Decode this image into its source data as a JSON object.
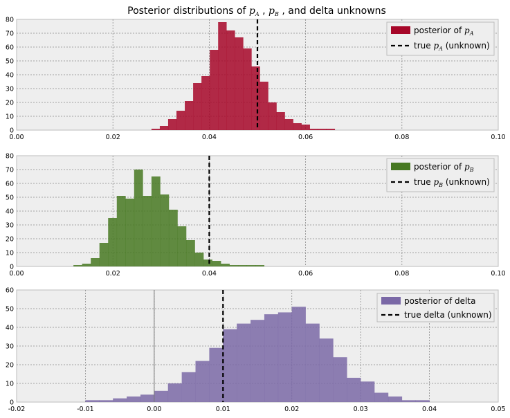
{
  "figure_title": {
    "pre": "Posterior distributions of ",
    "sep1": " , ",
    "sep2": " , and delta unknowns",
    "symbol_a": "p",
    "sub_a": "A",
    "symbol_b": "p",
    "sub_b": "B"
  },
  "colors": {
    "panel_bg": "#eeeeee",
    "grid": "#8a8a8a",
    "hist_a": "#a60628",
    "hist_b": "#467821",
    "hist_delta": "#7a68a6",
    "truth_line": "#000000"
  },
  "chart_data": [
    {
      "id": "A",
      "type": "bar",
      "title": "",
      "xlim": [
        0.0,
        0.1
      ],
      "ylim": [
        0,
        80
      ],
      "xticks": [
        "0.00",
        "0.02",
        "0.04",
        "0.06",
        "0.08",
        "0.10"
      ],
      "yticks": [
        "0",
        "10",
        "20",
        "30",
        "40",
        "50",
        "60",
        "70",
        "80"
      ],
      "grid": true,
      "legend_placement": "top-right",
      "legend": {
        "hist_label_pre": "posterior of ",
        "hist_symbol": "p",
        "hist_sub": "A",
        "line_label_pre": "true ",
        "line_symbol": "p",
        "line_sub": "A",
        "line_label_post": " (unknown)"
      },
      "true_value": 0.05,
      "bins": {
        "start": 0.028,
        "width": 0.00173,
        "heights": [
          1,
          3,
          8,
          14,
          21,
          34,
          39,
          58,
          78,
          72,
          67,
          59,
          46,
          35,
          20,
          13,
          8,
          5,
          4,
          1,
          1,
          1
        ]
      }
    },
    {
      "id": "B",
      "type": "bar",
      "title": "",
      "xlim": [
        0.0,
        0.1
      ],
      "ylim": [
        0,
        80
      ],
      "xticks": [
        "0.00",
        "0.02",
        "0.04",
        "0.06",
        "0.08",
        "0.10"
      ],
      "yticks": [
        "0",
        "10",
        "20",
        "30",
        "40",
        "50",
        "60",
        "70",
        "80"
      ],
      "grid": true,
      "legend_placement": "top-right",
      "legend": {
        "hist_label_pre": "posterior of ",
        "hist_symbol": "p",
        "hist_sub": "B",
        "line_label_pre": "true ",
        "line_symbol": "p",
        "line_sub": "B",
        "line_label_post": " (unknown)"
      },
      "true_value": 0.04,
      "bins": {
        "start": 0.0118,
        "width": 0.0018,
        "heights": [
          1,
          2,
          6,
          17,
          35,
          51,
          49,
          70,
          51,
          65,
          52,
          41,
          29,
          19,
          10,
          5,
          4,
          2,
          1,
          1,
          1,
          1
        ]
      }
    },
    {
      "id": "delta",
      "type": "bar",
      "title": "",
      "xlim": [
        -0.02,
        0.05
      ],
      "ylim": [
        0,
        60
      ],
      "xticks": [
        "-0.02",
        "-0.01",
        "0.00",
        "0.01",
        "0.02",
        "0.03",
        "0.04",
        "0.05"
      ],
      "yticks": [
        "0",
        "10",
        "20",
        "30",
        "40",
        "50",
        "60"
      ],
      "grid": true,
      "legend_placement": "top-right",
      "legend": {
        "hist_label": "posterior of delta",
        "line_label": "true delta (unknown)"
      },
      "true_value": 0.01,
      "bins": {
        "start": -0.01,
        "width": 0.002,
        "heights": [
          1,
          1,
          2,
          3,
          4,
          6,
          10,
          16,
          22,
          29,
          39,
          42,
          44,
          47,
          48,
          51,
          42,
          34,
          24,
          13,
          11,
          5,
          3,
          1,
          1,
          0
        ]
      }
    }
  ]
}
